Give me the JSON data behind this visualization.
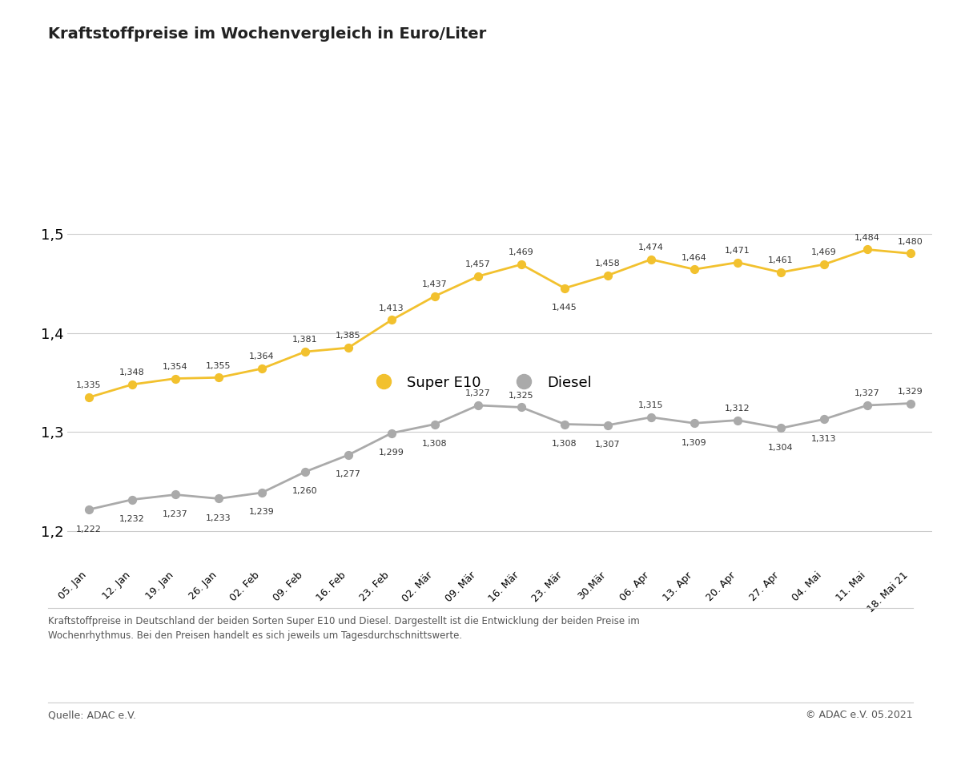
{
  "title": "Kraftstoffpreise im Wochenvergleich in Euro/Liter",
  "x_labels": [
    "05. Jan",
    "12. Jan",
    "19. Jan",
    "26. Jan",
    "02. Feb",
    "09. Feb",
    "16. Feb",
    "23. Feb",
    "02. Mär",
    "09. Mär",
    "16. Mär",
    "23. Mär",
    "30.Mär",
    "06. Apr",
    "13. Apr",
    "20. Apr",
    "27. Apr",
    "04. Mai",
    "11. Mai",
    "18. Mai 21"
  ],
  "super_e10": [
    1.335,
    1.348,
    1.354,
    1.355,
    1.364,
    1.381,
    1.385,
    1.413,
    1.437,
    1.457,
    1.469,
    1.445,
    1.458,
    1.474,
    1.464,
    1.471,
    1.461,
    1.469,
    1.484,
    1.48
  ],
  "diesel": [
    1.222,
    1.232,
    1.237,
    1.233,
    1.239,
    1.26,
    1.277,
    1.299,
    1.308,
    1.327,
    1.325,
    1.308,
    1.307,
    1.315,
    1.309,
    1.312,
    1.304,
    1.313,
    1.327,
    1.329
  ],
  "super_color": "#F2C12E",
  "diesel_color": "#AAAAAA",
  "super_label": "Super E10",
  "diesel_label": "Diesel",
  "y_ticks": [
    1.2,
    1.3,
    1.4,
    1.5
  ],
  "y_tick_labels": [
    "1,2",
    "1,3",
    "1,4",
    "1,5"
  ],
  "ylim": [
    1.165,
    1.535
  ],
  "footnote_line1": "Kraftstoffpreise in Deutschland der beiden Sorten Super E10 und Diesel. Dargestellt ist die Entwicklung der beiden Preise im",
  "footnote_line2": "Wochenrhythmus. Bei den Preisen handelt es sich jeweils um Tagesdurchschnittswerte.",
  "source_left": "Quelle: ADAC e.V.",
  "source_right": "© ADAC e.V. 05.2021",
  "background_color": "#FFFFFF",
  "grid_color": "#CCCCCC",
  "label_fontsize": 9.0,
  "title_fontsize": 14,
  "annotation_fontsize": 8.0,
  "legend_fontsize": 13
}
